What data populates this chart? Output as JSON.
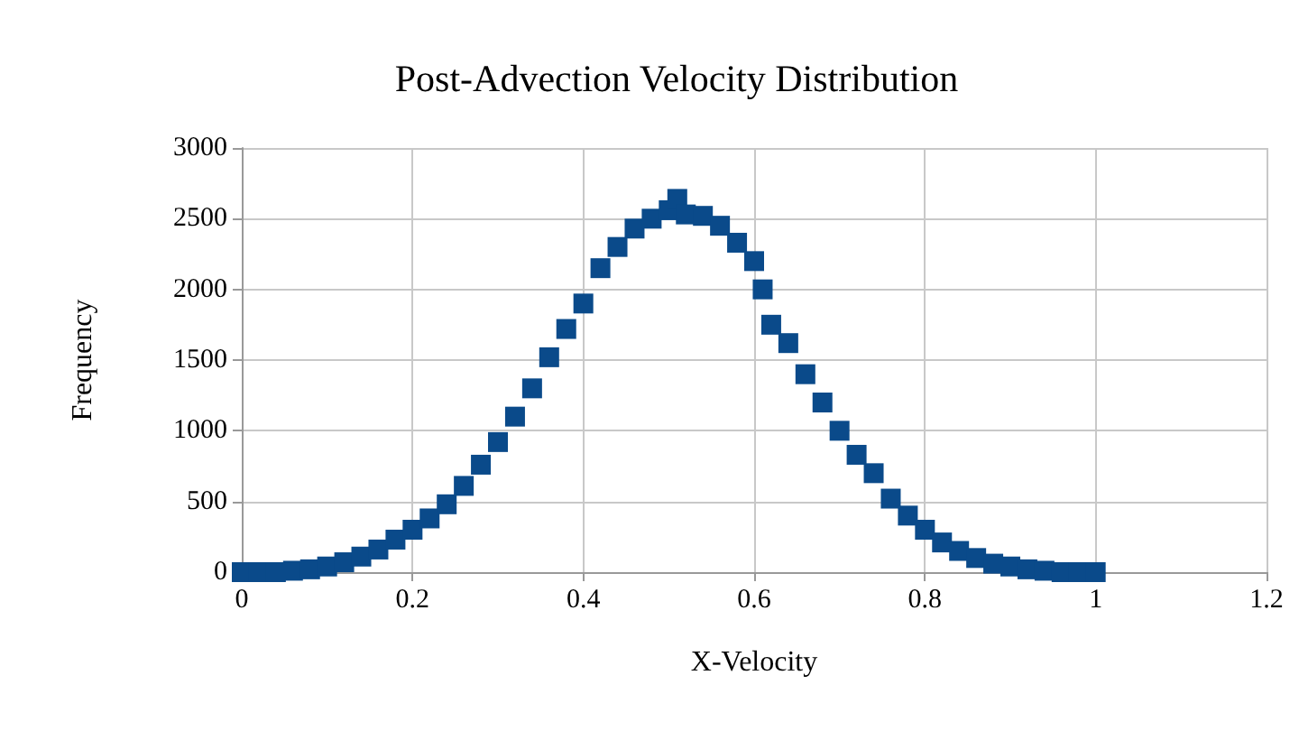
{
  "chart_data": {
    "type": "scatter",
    "title": "Post-Advection Velocity Distribution",
    "xlabel": "X-Velocity",
    "ylabel": "Frequency",
    "x": [
      0,
      0.02,
      0.04,
      0.06,
      0.08,
      0.1,
      0.12,
      0.14,
      0.16,
      0.18,
      0.2,
      0.22,
      0.24,
      0.26,
      0.28,
      0.3,
      0.32,
      0.34,
      0.36,
      0.38,
      0.4,
      0.42,
      0.44,
      0.46,
      0.48,
      0.5,
      0.51,
      0.52,
      0.54,
      0.56,
      0.58,
      0.6,
      0.61,
      0.62,
      0.64,
      0.66,
      0.68,
      0.7,
      0.72,
      0.74,
      0.76,
      0.78,
      0.8,
      0.82,
      0.84,
      0.86,
      0.88,
      0.9,
      0.92,
      0.94,
      0.96,
      0.98,
      1
    ],
    "series": [
      {
        "color": "#0a4a8a",
        "values": [
          0,
          0,
          0,
          10,
          20,
          40,
          70,
          110,
          160,
          230,
          300,
          380,
          480,
          610,
          760,
          920,
          1100,
          1300,
          1520,
          1720,
          1900,
          2150,
          2300,
          2430,
          2500,
          2560,
          2640,
          2530,
          2520,
          2450,
          2330,
          2200,
          2000,
          1750,
          1620,
          1400,
          1200,
          1000,
          830,
          700,
          520,
          400,
          300,
          210,
          150,
          100,
          60,
          40,
          20,
          10,
          0,
          0,
          0
        ]
      }
    ],
    "xlim": [
      0,
      1.2
    ],
    "xticks": [
      0,
      0.2,
      0.4,
      0.6,
      0.8,
      1,
      1.2
    ],
    "ylim": [
      0,
      3000
    ],
    "yticks": [
      0,
      500,
      1000,
      1500,
      2000,
      2500,
      3000
    ],
    "grid": true,
    "marker": "square"
  }
}
